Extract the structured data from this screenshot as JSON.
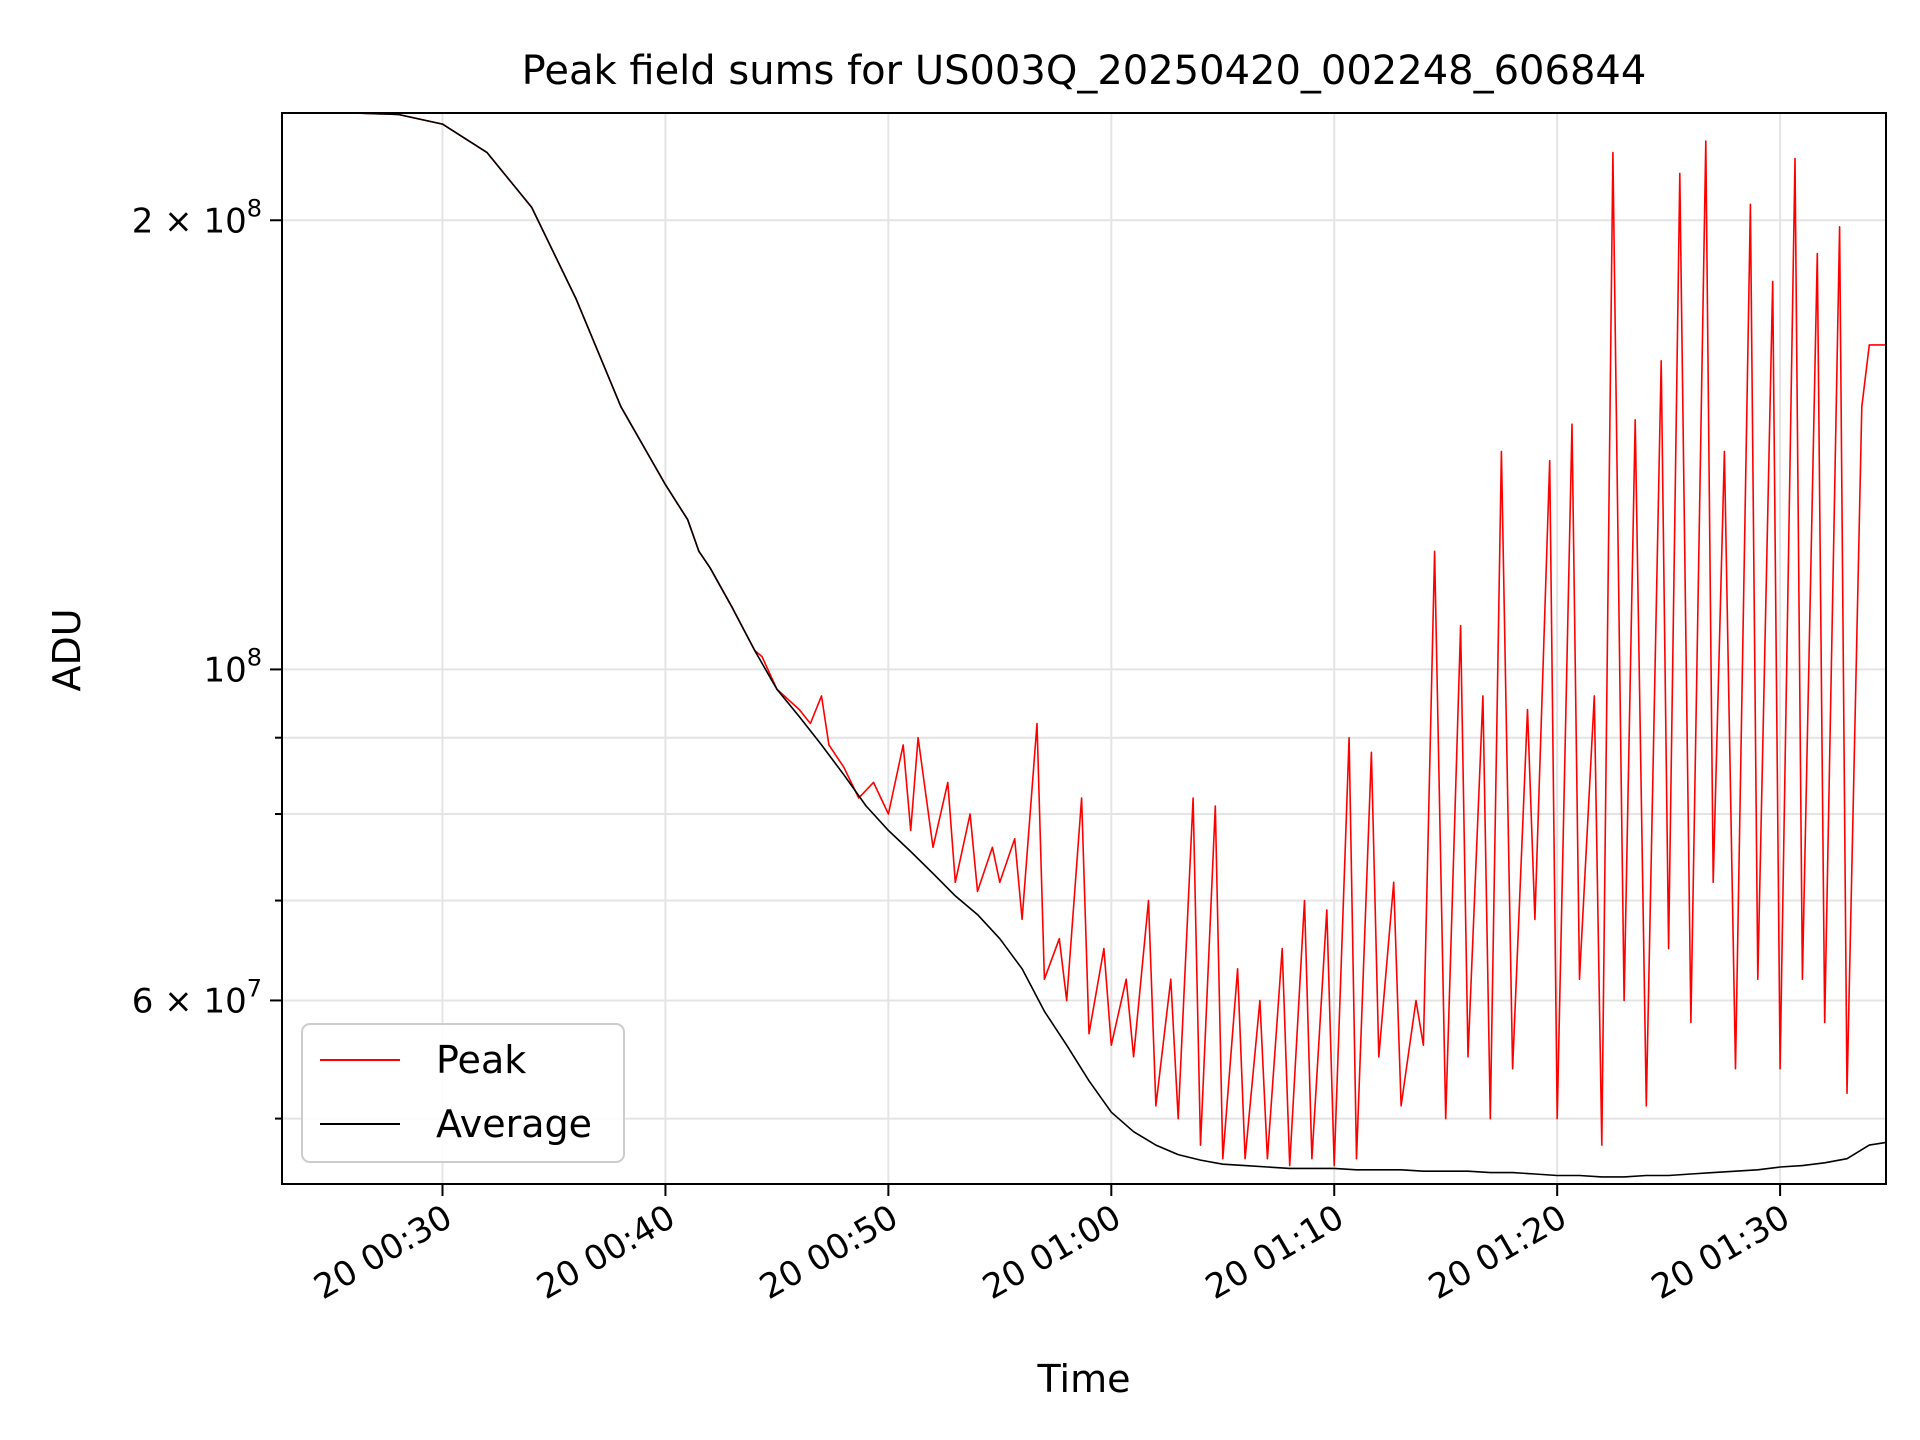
{
  "chart_data": {
    "type": "line",
    "title": "Peak field sums for US003Q_20250420_002248_606844",
    "xlabel": "Time",
    "ylabel": "ADU",
    "y_scale": "log",
    "grid": true,
    "legend_position": "lower-left",
    "x_range": [
      "2025-04-20 00:22:48",
      "2025-04-20 01:34:45"
    ],
    "y_range": [
      45200000,
      236000000
    ],
    "x_ticks": [
      {
        "time": "2025-04-20 00:30:00",
        "label": "20 00:30"
      },
      {
        "time": "2025-04-20 00:40:00",
        "label": "20 00:40"
      },
      {
        "time": "2025-04-20 00:50:00",
        "label": "20 00:50"
      },
      {
        "time": "2025-04-20 01:00:00",
        "label": "20 01:00"
      },
      {
        "time": "2025-04-20 01:10:00",
        "label": "20 01:10"
      },
      {
        "time": "2025-04-20 01:20:00",
        "label": "20 01:20"
      },
      {
        "time": "2025-04-20 01:30:00",
        "label": "20 01:30"
      }
    ],
    "y_major_ticks": [
      {
        "value": 60000000,
        "base": "6 × 10",
        "exp": "7"
      },
      {
        "value": 100000000,
        "base": "10",
        "exp": "8"
      },
      {
        "value": 200000000,
        "base": "2 × 10",
        "exp": "8"
      }
    ],
    "y_minor_ticks": [
      50000000,
      70000000,
      80000000,
      90000000
    ],
    "series": [
      {
        "name": "Peak",
        "color": "#ff0000",
        "values": [
          [
            "2025-04-20 00:22:48",
            236000000
          ],
          [
            "2025-04-20 00:26:00",
            236000000
          ],
          [
            "2025-04-20 00:28:00",
            235500000
          ],
          [
            "2025-04-20 00:30:00",
            232000000
          ],
          [
            "2025-04-20 00:32:00",
            222000000
          ],
          [
            "2025-04-20 00:34:00",
            204000000
          ],
          [
            "2025-04-20 00:36:00",
            177000000
          ],
          [
            "2025-04-20 00:38:00",
            150000000
          ],
          [
            "2025-04-20 00:40:00",
            133000000
          ],
          [
            "2025-04-20 00:41:00",
            126000000
          ],
          [
            "2025-04-20 00:41:30",
            120000000
          ],
          [
            "2025-04-20 00:42:00",
            117000000
          ],
          [
            "2025-04-20 00:43:00",
            110000000
          ],
          [
            "2025-04-20 00:44:00",
            103000000
          ],
          [
            "2025-04-20 00:44:20",
            102000000
          ],
          [
            "2025-04-20 00:45:00",
            97000000
          ],
          [
            "2025-04-20 00:46:00",
            94000000
          ],
          [
            "2025-04-20 00:46:30",
            92000000
          ],
          [
            "2025-04-20 00:47:00",
            96000000
          ],
          [
            "2025-04-20 00:47:20",
            89000000
          ],
          [
            "2025-04-20 00:48:00",
            86000000
          ],
          [
            "2025-04-20 00:48:40",
            82000000
          ],
          [
            "2025-04-20 00:49:20",
            84000000
          ],
          [
            "2025-04-20 00:50:00",
            80000000
          ],
          [
            "2025-04-20 00:50:40",
            89000000
          ],
          [
            "2025-04-20 00:51:00",
            78000000
          ],
          [
            "2025-04-20 00:51:20",
            90000000
          ],
          [
            "2025-04-20 00:52:00",
            76000000
          ],
          [
            "2025-04-20 00:52:40",
            84000000
          ],
          [
            "2025-04-20 00:53:00",
            72000000
          ],
          [
            "2025-04-20 00:53:40",
            80000000
          ],
          [
            "2025-04-20 00:54:00",
            71000000
          ],
          [
            "2025-04-20 00:54:40",
            76000000
          ],
          [
            "2025-04-20 00:55:00",
            72000000
          ],
          [
            "2025-04-20 00:55:40",
            77000000
          ],
          [
            "2025-04-20 00:56:00",
            68000000
          ],
          [
            "2025-04-20 00:56:40",
            92000000
          ],
          [
            "2025-04-20 00:57:00",
            62000000
          ],
          [
            "2025-04-20 00:57:40",
            66000000
          ],
          [
            "2025-04-20 00:58:00",
            60000000
          ],
          [
            "2025-04-20 00:58:40",
            82000000
          ],
          [
            "2025-04-20 00:59:00",
            57000000
          ],
          [
            "2025-04-20 00:59:40",
            65000000
          ],
          [
            "2025-04-20 01:00:00",
            56000000
          ],
          [
            "2025-04-20 01:00:40",
            62000000
          ],
          [
            "2025-04-20 01:01:00",
            55000000
          ],
          [
            "2025-04-20 01:01:40",
            70000000
          ],
          [
            "2025-04-20 01:02:00",
            51000000
          ],
          [
            "2025-04-20 01:02:40",
            62000000
          ],
          [
            "2025-04-20 01:03:00",
            50000000
          ],
          [
            "2025-04-20 01:03:40",
            82000000
          ],
          [
            "2025-04-20 01:04:00",
            48000000
          ],
          [
            "2025-04-20 01:04:40",
            81000000
          ],
          [
            "2025-04-20 01:05:00",
            47000000
          ],
          [
            "2025-04-20 01:05:40",
            63000000
          ],
          [
            "2025-04-20 01:06:00",
            47000000
          ],
          [
            "2025-04-20 01:06:40",
            60000000
          ],
          [
            "2025-04-20 01:07:00",
            47000000
          ],
          [
            "2025-04-20 01:07:40",
            65000000
          ],
          [
            "2025-04-20 01:08:00",
            46500000
          ],
          [
            "2025-04-20 01:08:40",
            70000000
          ],
          [
            "2025-04-20 01:09:00",
            47000000
          ],
          [
            "2025-04-20 01:09:40",
            69000000
          ],
          [
            "2025-04-20 01:10:00",
            46500000
          ],
          [
            "2025-04-20 01:10:40",
            90000000
          ],
          [
            "2025-04-20 01:11:00",
            47000000
          ],
          [
            "2025-04-20 01:11:40",
            88000000
          ],
          [
            "2025-04-20 01:12:00",
            55000000
          ],
          [
            "2025-04-20 01:12:40",
            72000000
          ],
          [
            "2025-04-20 01:13:00",
            51000000
          ],
          [
            "2025-04-20 01:13:40",
            60000000
          ],
          [
            "2025-04-20 01:14:00",
            56000000
          ],
          [
            "2025-04-20 01:14:30",
            120000000
          ],
          [
            "2025-04-20 01:15:00",
            50000000
          ],
          [
            "2025-04-20 01:15:40",
            107000000
          ],
          [
            "2025-04-20 01:16:00",
            55000000
          ],
          [
            "2025-04-20 01:16:40",
            96000000
          ],
          [
            "2025-04-20 01:17:00",
            50000000
          ],
          [
            "2025-04-20 01:17:30",
            140000000
          ],
          [
            "2025-04-20 01:18:00",
            54000000
          ],
          [
            "2025-04-20 01:18:40",
            94000000
          ],
          [
            "2025-04-20 01:19:00",
            68000000
          ],
          [
            "2025-04-20 01:19:40",
            138000000
          ],
          [
            "2025-04-20 01:20:00",
            50000000
          ],
          [
            "2025-04-20 01:20:40",
            146000000
          ],
          [
            "2025-04-20 01:21:00",
            62000000
          ],
          [
            "2025-04-20 01:21:40",
            96000000
          ],
          [
            "2025-04-20 01:22:00",
            48000000
          ],
          [
            "2025-04-20 01:22:30",
            222000000
          ],
          [
            "2025-04-20 01:23:00",
            60000000
          ],
          [
            "2025-04-20 01:23:30",
            147000000
          ],
          [
            "2025-04-20 01:24:00",
            51000000
          ],
          [
            "2025-04-20 01:24:40",
            161000000
          ],
          [
            "2025-04-20 01:25:00",
            65000000
          ],
          [
            "2025-04-20 01:25:30",
            215000000
          ],
          [
            "2025-04-20 01:26:00",
            58000000
          ],
          [
            "2025-04-20 01:26:40",
            226000000
          ],
          [
            "2025-04-20 01:27:00",
            72000000
          ],
          [
            "2025-04-20 01:27:30",
            140000000
          ],
          [
            "2025-04-20 01:28:00",
            54000000
          ],
          [
            "2025-04-20 01:28:40",
            205000000
          ],
          [
            "2025-04-20 01:29:00",
            62000000
          ],
          [
            "2025-04-20 01:29:40",
            182000000
          ],
          [
            "2025-04-20 01:30:00",
            54000000
          ],
          [
            "2025-04-20 01:30:40",
            220000000
          ],
          [
            "2025-04-20 01:31:00",
            62000000
          ],
          [
            "2025-04-20 01:31:40",
            190000000
          ],
          [
            "2025-04-20 01:32:00",
            58000000
          ],
          [
            "2025-04-20 01:32:40",
            198000000
          ],
          [
            "2025-04-20 01:33:00",
            52000000
          ],
          [
            "2025-04-20 01:33:40",
            150000000
          ],
          [
            "2025-04-20 01:34:00",
            165000000
          ],
          [
            "2025-04-20 01:34:45",
            165000000
          ]
        ]
      },
      {
        "name": "Average",
        "color": "#000000",
        "values": [
          [
            "2025-04-20 00:22:48",
            236000000
          ],
          [
            "2025-04-20 00:26:00",
            236000000
          ],
          [
            "2025-04-20 00:28:00",
            235500000
          ],
          [
            "2025-04-20 00:30:00",
            232000000
          ],
          [
            "2025-04-20 00:32:00",
            222000000
          ],
          [
            "2025-04-20 00:34:00",
            204000000
          ],
          [
            "2025-04-20 00:36:00",
            177000000
          ],
          [
            "2025-04-20 00:38:00",
            150000000
          ],
          [
            "2025-04-20 00:40:00",
            133000000
          ],
          [
            "2025-04-20 00:41:00",
            126000000
          ],
          [
            "2025-04-20 00:41:30",
            120000000
          ],
          [
            "2025-04-20 00:42:00",
            117000000
          ],
          [
            "2025-04-20 00:43:00",
            110000000
          ],
          [
            "2025-04-20 00:44:00",
            103000000
          ],
          [
            "2025-04-20 00:45:00",
            97000000
          ],
          [
            "2025-04-20 00:46:00",
            93000000
          ],
          [
            "2025-04-20 00:47:00",
            89000000
          ],
          [
            "2025-04-20 00:48:00",
            85000000
          ],
          [
            "2025-04-20 00:49:00",
            81000000
          ],
          [
            "2025-04-20 00:50:00",
            78000000
          ],
          [
            "2025-04-20 00:51:00",
            75500000
          ],
          [
            "2025-04-20 00:52:00",
            73000000
          ],
          [
            "2025-04-20 00:53:00",
            70500000
          ],
          [
            "2025-04-20 00:54:00",
            68500000
          ],
          [
            "2025-04-20 00:55:00",
            66000000
          ],
          [
            "2025-04-20 00:56:00",
            63000000
          ],
          [
            "2025-04-20 00:57:00",
            59000000
          ],
          [
            "2025-04-20 00:58:00",
            56000000
          ],
          [
            "2025-04-20 00:59:00",
            53000000
          ],
          [
            "2025-04-20 01:00:00",
            50500000
          ],
          [
            "2025-04-20 01:01:00",
            49000000
          ],
          [
            "2025-04-20 01:02:00",
            48000000
          ],
          [
            "2025-04-20 01:03:00",
            47300000
          ],
          [
            "2025-04-20 01:04:00",
            46900000
          ],
          [
            "2025-04-20 01:05:00",
            46600000
          ],
          [
            "2025-04-20 01:06:00",
            46500000
          ],
          [
            "2025-04-20 01:07:00",
            46400000
          ],
          [
            "2025-04-20 01:08:00",
            46300000
          ],
          [
            "2025-04-20 01:09:00",
            46300000
          ],
          [
            "2025-04-20 01:10:00",
            46300000
          ],
          [
            "2025-04-20 01:11:00",
            46200000
          ],
          [
            "2025-04-20 01:12:00",
            46200000
          ],
          [
            "2025-04-20 01:13:00",
            46200000
          ],
          [
            "2025-04-20 01:14:00",
            46100000
          ],
          [
            "2025-04-20 01:15:00",
            46100000
          ],
          [
            "2025-04-20 01:16:00",
            46100000
          ],
          [
            "2025-04-20 01:17:00",
            46000000
          ],
          [
            "2025-04-20 01:18:00",
            46000000
          ],
          [
            "2025-04-20 01:19:00",
            45900000
          ],
          [
            "2025-04-20 01:20:00",
            45800000
          ],
          [
            "2025-04-20 01:21:00",
            45800000
          ],
          [
            "2025-04-20 01:22:00",
            45700000
          ],
          [
            "2025-04-20 01:23:00",
            45700000
          ],
          [
            "2025-04-20 01:24:00",
            45800000
          ],
          [
            "2025-04-20 01:25:00",
            45800000
          ],
          [
            "2025-04-20 01:26:00",
            45900000
          ],
          [
            "2025-04-20 01:27:00",
            46000000
          ],
          [
            "2025-04-20 01:28:00",
            46100000
          ],
          [
            "2025-04-20 01:29:00",
            46200000
          ],
          [
            "2025-04-20 01:30:00",
            46400000
          ],
          [
            "2025-04-20 01:31:00",
            46500000
          ],
          [
            "2025-04-20 01:32:00",
            46700000
          ],
          [
            "2025-04-20 01:33:00",
            47000000
          ],
          [
            "2025-04-20 01:34:00",
            48000000
          ],
          [
            "2025-04-20 01:34:45",
            48200000
          ]
        ]
      }
    ]
  }
}
